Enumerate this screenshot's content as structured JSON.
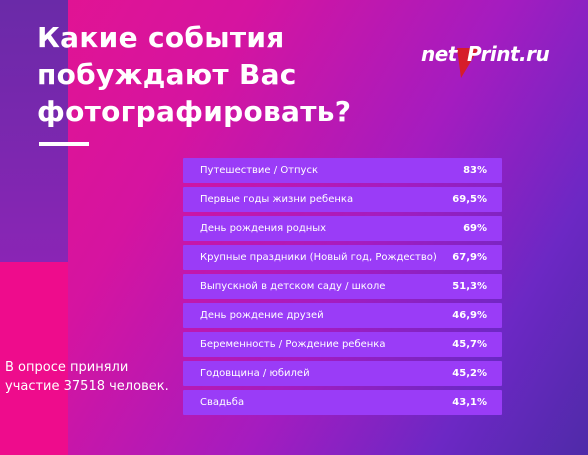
{
  "header": {
    "title_lines": [
      "Какие события",
      "побуждают Вас",
      "фотографировать?"
    ]
  },
  "logo": {
    "part1": "net",
    "part2": "Print.ru",
    "accent": "#d61d2a"
  },
  "note": {
    "text": "В опросе приняли участие 37518 человек."
  },
  "colors": {
    "bar": "#9a3cf7",
    "background_start": "#e5138f",
    "background_end": "#4f2aa8"
  },
  "chart_data": {
    "type": "bar",
    "orientation": "horizontal",
    "title": "Какие события побуждают Вас фотографировать?",
    "categories": [
      "Путешествие / Отпуск",
      "Первые годы жизни ребенка",
      "День рождения родных",
      "Крупные праздники (Новый год, Рождество)",
      "Выпускной в детском саду / школе",
      "День рождение друзей",
      "Беременность / Рождение ребенка",
      "Годовщина / юбилей",
      "Свадьба"
    ],
    "value_labels": [
      "83%",
      "69,5%",
      "69%",
      "67,9%",
      "51,3%",
      "46,9%",
      "45,7%",
      "45,2%",
      "43,1%"
    ],
    "values": [
      83,
      69.5,
      69,
      67.9,
      51.3,
      46.9,
      45.7,
      45.2,
      43.1
    ],
    "unit": "%"
  }
}
